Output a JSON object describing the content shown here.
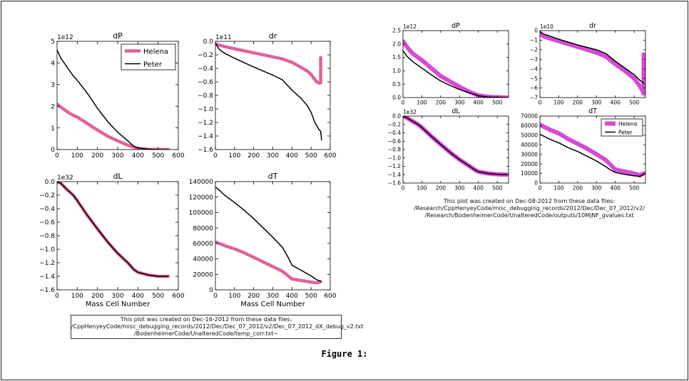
{
  "figure_label": "Figure 1:",
  "left_caption": [
    "This plot was created on Dec-16-2012 from these data files:",
    "/CppHenyeyCode/misc_debugging_records/2012/Dec/Dec_07_2012/v2/Dec_07_2012_dX_debug_v2.txt",
    "/BodenheimerCode/UnalteredCode/temp_corr.txt~"
  ],
  "right_caption": [
    "This plot was created on Dec-08-2012 from these data files:",
    "/Research/CppHenyeyCode/misc_debugging_records/2012/Dec/Dec_07_2012/v2/",
    "/Research/BodenheimerCode/UnalteredCode/outputs/10MjNF_gvalues.txt"
  ],
  "colors": {
    "helena_left": "#e0629b",
    "helena_right": "#d84ad6",
    "peter": "#000000",
    "axis": "#000000"
  },
  "chart_data": [
    {
      "type": "line",
      "group": "left",
      "title": "dP",
      "xlabel": "",
      "ylabel": "",
      "offset_text": "1e12",
      "xlim": [
        0,
        600
      ],
      "ylim": [
        0,
        5
      ],
      "xticks": [
        "0",
        "100",
        "200",
        "300",
        "400",
        "500",
        "600"
      ],
      "yticks": [
        "0",
        "1",
        "2",
        "3",
        "4",
        "5"
      ],
      "legend": {
        "placement": "top-right",
        "entries": [
          "Helena",
          "Peter"
        ]
      },
      "series": [
        {
          "name": "Helena",
          "x": [
            0,
            20,
            50,
            80,
            100,
            150,
            200,
            250,
            300,
            350,
            400,
            450,
            500,
            550
          ],
          "y": [
            2.1,
            1.95,
            1.75,
            1.58,
            1.5,
            1.2,
            0.9,
            0.62,
            0.4,
            0.2,
            0.05,
            0.01,
            0.0,
            0.0
          ]
        },
        {
          "name": "Peter",
          "x": [
            0,
            20,
            50,
            80,
            100,
            150,
            200,
            250,
            300,
            350,
            380,
            400,
            450,
            500,
            550
          ],
          "y": [
            4.6,
            4.2,
            3.8,
            3.4,
            3.2,
            2.6,
            1.9,
            1.3,
            0.8,
            0.4,
            0.15,
            0.08,
            0.02,
            0.0,
            0.0
          ]
        }
      ]
    },
    {
      "type": "line",
      "group": "left",
      "title": "dr",
      "xlabel": "",
      "ylabel": "",
      "offset_text": "1e11",
      "xlim": [
        0,
        600
      ],
      "ylim": [
        -1.6,
        0.0
      ],
      "xticks": [
        "0",
        "100",
        "200",
        "300",
        "400",
        "500",
        "600"
      ],
      "yticks": [
        "0.0",
        "−0.2",
        "−0.4",
        "−0.6",
        "−0.8",
        "−1.0",
        "−1.2",
        "−1.4",
        "−1.6"
      ],
      "series": [
        {
          "name": "Helena",
          "x": [
            0,
            50,
            100,
            200,
            300,
            350,
            400,
            450,
            480,
            500,
            520,
            530,
            545,
            550,
            550
          ],
          "y": [
            -0.04,
            -0.08,
            -0.11,
            -0.17,
            -0.23,
            -0.26,
            -0.31,
            -0.39,
            -0.44,
            -0.49,
            -0.57,
            -0.6,
            -0.62,
            -0.61,
            -0.24
          ]
        },
        {
          "name": "Peter",
          "x": [
            0,
            20,
            50,
            100,
            200,
            300,
            350,
            400,
            450,
            480,
            500,
            520,
            540,
            550,
            555
          ],
          "y": [
            -0.03,
            -0.12,
            -0.18,
            -0.25,
            -0.38,
            -0.5,
            -0.57,
            -0.72,
            -0.85,
            -0.95,
            -1.05,
            -1.2,
            -1.3,
            -1.33,
            -1.46
          ]
        }
      ]
    },
    {
      "type": "line",
      "group": "left",
      "title": "dL",
      "xlabel": "Mass Cell Number",
      "ylabel": "",
      "offset_text": "1e32",
      "xlim": [
        0,
        600
      ],
      "ylim": [
        -1.6,
        0.0
      ],
      "xticks": [
        "0",
        "100",
        "200",
        "300",
        "400",
        "500",
        "600"
      ],
      "yticks": [
        "0.0",
        "−0.2",
        "−0.4",
        "−0.6",
        "−0.8",
        "−1.0",
        "−1.2",
        "−1.4",
        "−1.6"
      ],
      "series": [
        {
          "name": "Helena",
          "x": [
            0,
            20,
            50,
            80,
            100,
            150,
            200,
            250,
            300,
            350,
            380,
            400,
            450,
            500,
            550
          ],
          "y": [
            0.0,
            -0.03,
            -0.12,
            -0.2,
            -0.28,
            -0.5,
            -0.7,
            -0.89,
            -1.06,
            -1.2,
            -1.3,
            -1.34,
            -1.38,
            -1.4,
            -1.4
          ]
        },
        {
          "name": "Peter",
          "x": [
            0,
            20,
            50,
            80,
            100,
            150,
            200,
            250,
            300,
            350,
            380,
            400,
            450,
            500,
            550
          ],
          "y": [
            0.0,
            -0.03,
            -0.12,
            -0.2,
            -0.28,
            -0.5,
            -0.7,
            -0.89,
            -1.06,
            -1.2,
            -1.3,
            -1.34,
            -1.38,
            -1.4,
            -1.4
          ]
        }
      ]
    },
    {
      "type": "line",
      "group": "left",
      "title": "dT",
      "xlabel": "Mass Cell Number",
      "ylabel": "",
      "offset_text": "",
      "xlim": [
        0,
        600
      ],
      "ylim": [
        0,
        140000
      ],
      "xticks": [
        "0",
        "100",
        "200",
        "300",
        "400",
        "500",
        "600"
      ],
      "yticks": [
        "0",
        "20000",
        "40000",
        "60000",
        "80000",
        "100000",
        "120000",
        "140000"
      ],
      "series": [
        {
          "name": "Helena",
          "x": [
            0,
            50,
            100,
            150,
            200,
            250,
            300,
            350,
            380,
            400,
            450,
            500,
            530,
            550
          ],
          "y": [
            62000,
            57000,
            53000,
            48000,
            42000,
            36000,
            30000,
            24000,
            18000,
            14000,
            12000,
            10000,
            9000,
            10500
          ]
        },
        {
          "name": "Peter",
          "x": [
            0,
            20,
            50,
            100,
            150,
            200,
            250,
            300,
            350,
            380,
            400,
            450,
            500,
            530,
            550
          ],
          "y": [
            133000,
            129000,
            122000,
            113000,
            103000,
            92000,
            80000,
            68000,
            55000,
            42000,
            32000,
            25000,
            18000,
            13000,
            11000
          ]
        }
      ]
    },
    {
      "type": "line",
      "group": "right",
      "title": "dP",
      "xlabel": "",
      "ylabel": "",
      "offset_text": "1e12",
      "xlim": [
        0,
        560
      ],
      "ylim": [
        0,
        2.5
      ],
      "xticks": [
        "0",
        "100",
        "200",
        "300",
        "400",
        "500"
      ],
      "yticks": [
        "0.0",
        "0.5",
        "1.0",
        "1.5",
        "2.0",
        "2.5"
      ],
      "series": [
        {
          "name": "Helena",
          "x": [
            0,
            20,
            50,
            100,
            150,
            200,
            250,
            300,
            350,
            400,
            450,
            500,
            550
          ],
          "y": [
            2.1,
            1.9,
            1.65,
            1.4,
            1.1,
            0.8,
            0.6,
            0.4,
            0.22,
            0.08,
            0.03,
            0.01,
            0.0
          ]
        },
        {
          "name": "Peter",
          "x": [
            0,
            20,
            50,
            100,
            150,
            200,
            250,
            300,
            350,
            400,
            450,
            500,
            550
          ],
          "y": [
            1.75,
            1.55,
            1.35,
            1.1,
            0.85,
            0.62,
            0.45,
            0.3,
            0.18,
            0.07,
            0.02,
            0.01,
            0.0
          ]
        }
      ]
    },
    {
      "type": "line",
      "group": "right",
      "title": "dr",
      "xlabel": "",
      "ylabel": "",
      "offset_text": "1e10",
      "xlim": [
        0,
        560
      ],
      "ylim": [
        -7,
        0
      ],
      "xticks": [
        "0",
        "100",
        "200",
        "300",
        "400",
        "500"
      ],
      "yticks": [
        "0",
        "−1",
        "−2",
        "−3",
        "−4",
        "−5",
        "−6",
        "−7"
      ],
      "series": [
        {
          "name": "Helena",
          "x": [
            0,
            20,
            50,
            100,
            200,
            300,
            350,
            400,
            450,
            500,
            530,
            545,
            550,
            550
          ],
          "y": [
            -0.3,
            -0.6,
            -0.8,
            -1.1,
            -1.7,
            -2.3,
            -2.7,
            -3.5,
            -4.2,
            -5.0,
            -5.8,
            -6.3,
            -6.6,
            -2.5
          ]
        },
        {
          "name": "Peter",
          "x": [
            0,
            20,
            50,
            100,
            200,
            300,
            350,
            400,
            450,
            500,
            530,
            545,
            550
          ],
          "y": [
            -0.1,
            -0.35,
            -0.55,
            -0.9,
            -1.5,
            -2.0,
            -2.4,
            -3.2,
            -3.9,
            -4.6,
            -5.2,
            -5.4,
            -5.5
          ]
        }
      ]
    },
    {
      "type": "line",
      "group": "right",
      "title": "dL",
      "xlabel": "",
      "ylabel": "",
      "offset_text": "1e32",
      "xlim": [
        0,
        560
      ],
      "ylim": [
        -1.6,
        0.0
      ],
      "xticks": [
        "0",
        "100",
        "200",
        "300",
        "400",
        "500"
      ],
      "yticks": [
        "0.0",
        "−0.2",
        "−0.4",
        "−0.6",
        "−0.8",
        "−1.0",
        "−1.2",
        "−1.4",
        "−1.6"
      ],
      "series": [
        {
          "name": "Helena",
          "x": [
            0,
            20,
            50,
            80,
            100,
            150,
            200,
            250,
            300,
            350,
            380,
            400,
            450,
            500,
            550
          ],
          "y": [
            0.0,
            -0.04,
            -0.12,
            -0.2,
            -0.27,
            -0.48,
            -0.68,
            -0.87,
            -1.04,
            -1.19,
            -1.28,
            -1.33,
            -1.37,
            -1.39,
            -1.4
          ]
        },
        {
          "name": "Peter",
          "x": [
            0,
            20,
            50,
            80,
            100,
            150,
            200,
            250,
            300,
            350,
            380,
            400,
            450,
            500,
            550
          ],
          "y": [
            0.0,
            -0.04,
            -0.12,
            -0.2,
            -0.27,
            -0.48,
            -0.68,
            -0.87,
            -1.04,
            -1.19,
            -1.28,
            -1.33,
            -1.37,
            -1.39,
            -1.4
          ]
        }
      ]
    },
    {
      "type": "line",
      "group": "right",
      "title": "dT",
      "xlabel": "",
      "ylabel": "",
      "offset_text": "",
      "xlim": [
        0,
        560
      ],
      "ylim": [
        0,
        70000
      ],
      "xticks": [
        "0",
        "100",
        "200",
        "300",
        "400",
        "500"
      ],
      "yticks": [
        "0",
        "10000",
        "20000",
        "30000",
        "40000",
        "50000",
        "60000",
        "70000"
      ],
      "legend": {
        "placement": "top-right",
        "entries": [
          "Helena",
          "Peter"
        ]
      },
      "series": [
        {
          "name": "Helena",
          "x": [
            0,
            20,
            50,
            100,
            150,
            200,
            250,
            300,
            350,
            380,
            400,
            450,
            500,
            530,
            550
          ],
          "y": [
            61000,
            59000,
            56000,
            52000,
            46000,
            41000,
            36000,
            30000,
            24000,
            18000,
            14000,
            12000,
            10000,
            8000,
            10000
          ]
        },
        {
          "name": "Peter",
          "x": [
            0,
            20,
            50,
            100,
            150,
            200,
            250,
            300,
            350,
            380,
            400,
            450,
            500,
            530,
            550
          ],
          "y": [
            51000,
            49000,
            46000,
            42000,
            37000,
            33000,
            28000,
            23000,
            17000,
            13000,
            11000,
            9000,
            7500,
            7000,
            9000
          ]
        }
      ]
    }
  ]
}
